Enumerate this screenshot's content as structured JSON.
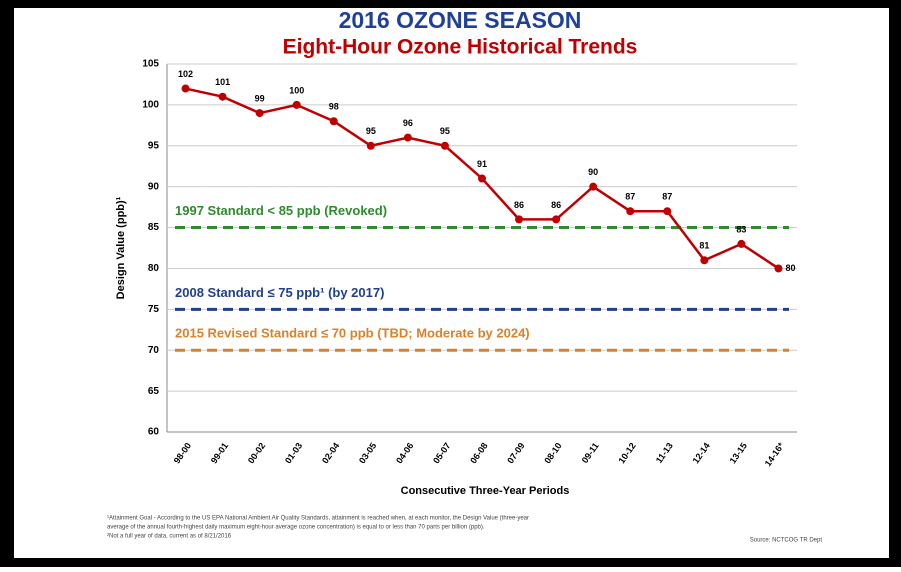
{
  "chart_data": {
    "type": "line",
    "title": "2016 OZONE SEASON",
    "subtitle": "Eight-Hour Ozone Historical Trends",
    "xlabel": "Consecutive Three-Year Periods",
    "ylabel": "Design Value (ppb)¹",
    "categories": [
      "98-00",
      "99-01",
      "00-02",
      "01-03",
      "02-04",
      "03-05",
      "04-06",
      "05-07",
      "06-08",
      "07-09",
      "08-10",
      "09-11",
      "10-12",
      "11-13",
      "12-14",
      "13-15",
      "14-16*"
    ],
    "series": [
      {
        "name": "Design Value",
        "color": "#c00000",
        "values": [
          102,
          101,
          99,
          100,
          98,
          95,
          96,
          95,
          91,
          86,
          86,
          90,
          87,
          87,
          81,
          83,
          80
        ]
      }
    ],
    "ylim": [
      60,
      105
    ],
    "yticks": [
      60,
      65,
      70,
      75,
      80,
      85,
      90,
      95,
      100,
      105
    ],
    "grid": true,
    "reference_lines": [
      {
        "value": 85,
        "label": "1997 Standard < 85 ppb (Revoked)",
        "color": "#2e8b2e"
      },
      {
        "value": 75,
        "label": "2008 Standard ≤ 75 ppb¹ (by 2017)",
        "color": "#1f3f8f"
      },
      {
        "value": 70,
        "label": "2015 Revised Standard ≤ 70 ppb (TBD; Moderate by 2024)",
        "color": "#d9822b"
      }
    ],
    "footnotes": [
      "¹Attainment Goal - According to the US EPA National Ambient Air Quality Standards, attainment is reached when, at each monitor, the Design Value (three-year",
      "average of the annual fourth-highest daily maximum eight-hour average ozone concentration) is equal to or less than 70 parts per billion (ppb).",
      "²Not a full year of data, current as of 8/21/2016"
    ],
    "source": "Source: NCTCOG TR Dept"
  }
}
